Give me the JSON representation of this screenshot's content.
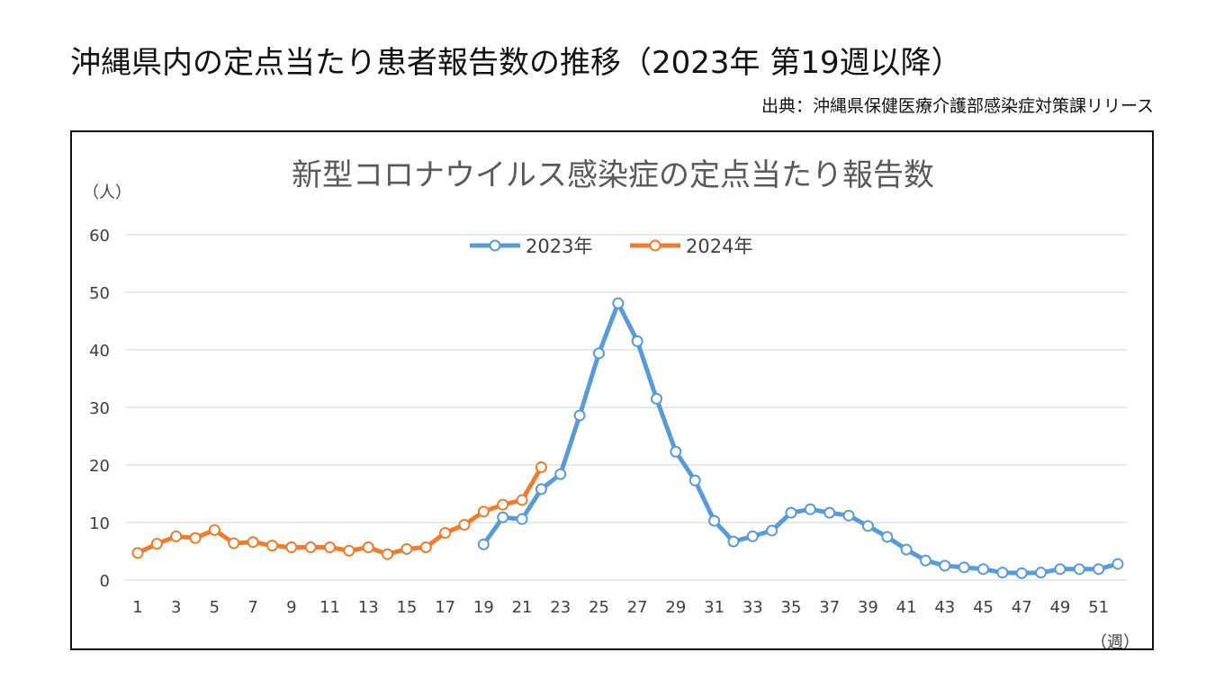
{
  "page": {
    "title": "沖縄県内の定点当たり患者報告数の推移（2023年 第19週以降）",
    "source": "出典：沖縄県保健医療介護部感染症対策課リリース"
  },
  "chart_data": {
    "type": "line",
    "title": "新型コロナウイルス感染症の定点当たり報告数",
    "ylabel": "（人）",
    "xlabel": "（週）",
    "ylim": [
      0,
      60
    ],
    "yticks": [
      0,
      10,
      20,
      30,
      40,
      50,
      60
    ],
    "xlim": [
      1,
      52
    ],
    "xticks": [
      1,
      3,
      5,
      7,
      9,
      11,
      13,
      15,
      17,
      19,
      21,
      23,
      25,
      27,
      29,
      31,
      33,
      35,
      37,
      39,
      41,
      43,
      45,
      47,
      49,
      51
    ],
    "grid": true,
    "legend_position": "top-center",
    "series": [
      {
        "name": "2023年",
        "color": "#5B9BD5",
        "x": [
          19,
          20,
          21,
          22,
          23,
          24,
          25,
          26,
          27,
          28,
          29,
          30,
          31,
          32,
          33,
          34,
          35,
          36,
          37,
          38,
          39,
          40,
          41,
          42,
          43,
          44,
          45,
          46,
          47,
          48,
          49,
          50,
          51,
          52
        ],
        "values": [
          6.2,
          10.9,
          10.6,
          15.8,
          18.4,
          28.6,
          39.4,
          48.1,
          41.5,
          31.5,
          22.3,
          17.3,
          10.3,
          6.7,
          7.6,
          8.6,
          11.7,
          12.3,
          11.7,
          11.2,
          9.4,
          7.5,
          5.3,
          3.4,
          2.5,
          2.2,
          1.9,
          1.3,
          1.2,
          1.3,
          1.9,
          1.9,
          1.9,
          2.8
        ]
      },
      {
        "name": "2024年",
        "color": "#ED7D31",
        "x": [
          1,
          2,
          3,
          4,
          5,
          6,
          7,
          8,
          9,
          10,
          11,
          12,
          13,
          14,
          15,
          16,
          17,
          18,
          19,
          20,
          21,
          22
        ],
        "values": [
          4.7,
          6.3,
          7.6,
          7.3,
          8.7,
          6.4,
          6.6,
          6.0,
          5.7,
          5.7,
          5.7,
          5.1,
          5.7,
          4.5,
          5.4,
          5.7,
          8.2,
          9.6,
          11.9,
          13.1,
          13.9,
          19.6
        ]
      }
    ]
  }
}
